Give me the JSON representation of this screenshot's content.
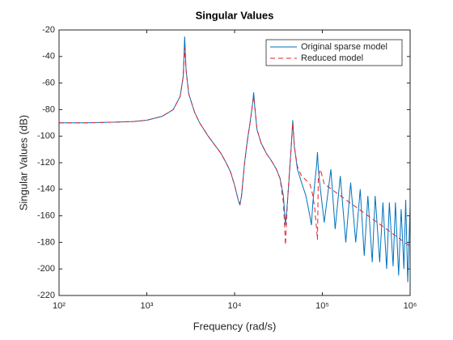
{
  "chart_data": {
    "type": "line",
    "title": "Singular Values",
    "xlabel": "Frequency (rad/s)",
    "ylabel": "Singular Values (dB)",
    "xscale": "log",
    "xlim": [
      100,
      1000000
    ],
    "xticks": [
      {
        "value": 100,
        "label": "10²"
      },
      {
        "value": 1000,
        "label": "10³"
      },
      {
        "value": 10000,
        "label": "10⁴"
      },
      {
        "value": 100000,
        "label": "10⁵"
      },
      {
        "value": 1000000,
        "label": "10⁶"
      }
    ],
    "ylim": [
      -220,
      -20
    ],
    "yticks": [
      -220,
      -200,
      -180,
      -160,
      -140,
      -120,
      -100,
      -80,
      -60,
      -40,
      -20
    ],
    "legend": "top-right",
    "x": [
      100,
      200,
      400,
      700,
      1000,
      1500,
      2000,
      2400,
      2600,
      2700,
      2800,
      3000,
      3500,
      4000,
      5000,
      6000,
      7000,
      8000,
      9000,
      10000,
      11000,
      11500,
      12000,
      13000,
      14000,
      15000,
      16000,
      16500,
      17000,
      18000,
      20000,
      23000,
      26000,
      30000,
      33000,
      36000,
      38000,
      40000,
      42000,
      44000,
      46000,
      48000,
      52000,
      58000,
      65000,
      72000,
      75000,
      78000,
      82000,
      86000,
      88000,
      90000,
      95000,
      105000,
      125000,
      140000,
      160000,
      185000,
      210000,
      240000,
      270000,
      300000,
      330000,
      370000,
      400000,
      450000,
      490000,
      540000,
      580000,
      640000,
      680000,
      740000,
      790000,
      850000,
      890000,
      940000,
      1000000
    ],
    "series": [
      {
        "name": "Original sparse model",
        "color": "#0072bd",
        "style": "solid",
        "values": [
          -90,
          -90,
          -89.5,
          -89,
          -88,
          -85,
          -80,
          -70,
          -55,
          -25,
          -50,
          -68,
          -82,
          -90,
          -100,
          -107,
          -113,
          -120,
          -127,
          -137,
          -148,
          -152,
          -145,
          -120,
          -103,
          -90,
          -76,
          -67,
          -78,
          -95,
          -105,
          -113,
          -118,
          -125,
          -132,
          -145,
          -167,
          -150,
          -130,
          -110,
          -88,
          -108,
          -125,
          -135,
          -145,
          -160,
          -167,
          -150,
          -135,
          -122,
          -112,
          -125,
          -140,
          -165,
          -125,
          -170,
          -130,
          -180,
          -135,
          -180,
          -140,
          -190,
          -145,
          -195,
          -145,
          -195,
          -150,
          -200,
          -150,
          -198,
          -150,
          -205,
          -155,
          -200,
          -148,
          -210,
          -152
        ]
      },
      {
        "name": "Reduced model",
        "color": "#e3202a",
        "style": "dashed",
        "values": [
          -90,
          -90,
          -89.5,
          -89,
          -88,
          -85,
          -80,
          -70,
          -55,
          -33,
          -50,
          -68,
          -82,
          -90,
          -100,
          -107,
          -113,
          -120,
          -127,
          -137,
          -148,
          -151,
          -145,
          -120,
          -103,
          -90,
          -76,
          -70,
          -78,
          -95,
          -105,
          -113,
          -118,
          -125,
          -132,
          -150,
          -182,
          -150,
          -128,
          -110,
          -90,
          -108,
          -123,
          -130,
          -133,
          -136,
          -140,
          -145,
          -155,
          -170,
          -178,
          -130,
          -125,
          -136,
          -139.6,
          -142,
          -144.8,
          -147.8,
          -150.5,
          -153.2,
          -155.7,
          -157.9,
          -159.9,
          -162.3,
          -163.9,
          -166.3,
          -168.1,
          -170.1,
          -171.6,
          -173.7,
          -175,
          -176.7,
          -178.1,
          -179.6,
          -180.6,
          -181.7,
          -183
        ]
      }
    ]
  }
}
